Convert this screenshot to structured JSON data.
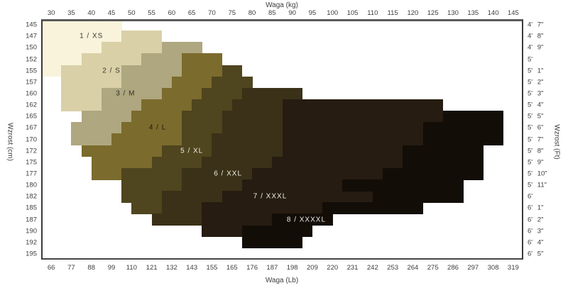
{
  "chart_data": {
    "type": "heatmap",
    "description": "Hosiery size chart: stepped diagonal size regions on a height-vs-weight grid",
    "axes": {
      "top": {
        "title": "Waga  (kg)",
        "ticks": [
          "30",
          "35",
          "40",
          "45",
          "50",
          "55",
          "60",
          "65",
          "70",
          "75",
          "80",
          "85",
          "90",
          "95",
          "100",
          "105",
          "110",
          "115",
          "120",
          "125",
          "130",
          "135",
          "140",
          "145"
        ]
      },
      "bottom": {
        "title": "Waga  (Lb)",
        "ticks": [
          "66",
          "77",
          "88",
          "99",
          "110",
          "121",
          "132",
          "143",
          "155",
          "165",
          "176",
          "187",
          "198",
          "209",
          "220",
          "231",
          "242",
          "253",
          "264",
          "275",
          "286",
          "297",
          "308",
          "319"
        ]
      },
      "left": {
        "title": "Wzrost  (cm)",
        "ticks": [
          "145",
          "147",
          "150",
          "152",
          "155",
          "157",
          "160",
          "162",
          "165",
          "167",
          "170",
          "172",
          "175",
          "177",
          "180",
          "182",
          "185",
          "187",
          "190",
          "192",
          "195"
        ]
      },
      "right": {
        "title": "Wzrost  (Ft)",
        "ticks": [
          "4' 7\"",
          "4' 8\"",
          "4' 9\"",
          "5'",
          "5' 1\"",
          "5' 2\"",
          "5' 3\"",
          "5' 4\"",
          "5' 5\"",
          "5' 6\"",
          "5' 7\"",
          "5' 8\"",
          "5' 9\"",
          "5' 10\"",
          "5' 11\"",
          "6'",
          "6' 1\"",
          "6' 2\"",
          "6' 3\"",
          "6' 4\"",
          "6' 5\""
        ]
      }
    },
    "grid": {
      "cols": 24,
      "rows": 21,
      "kg_at_col_center0": 30,
      "kg_per_col": 5,
      "note": "segment col units: weight boundary kg = 27.5 + 5*col; row index maps to left/cm tick"
    },
    "sizes": [
      {
        "label": "1 / XS",
        "color": "#f8f3da",
        "label_text_color": "#3a372c",
        "label_row": 1,
        "label_col": 2.5,
        "rows": [
          [
            0,
            0,
            4
          ],
          [
            1,
            0,
            4
          ],
          [
            2,
            0,
            3
          ],
          [
            3,
            0,
            2
          ],
          [
            4,
            0,
            1
          ]
        ]
      },
      {
        "label": "2 / S",
        "color": "#d9d0a8",
        "label_text_color": "#3a372c",
        "label_row": 4,
        "label_col": 3.5,
        "rows": [
          [
            1,
            4,
            6
          ],
          [
            2,
            3,
            6
          ],
          [
            3,
            2,
            5
          ],
          [
            4,
            1,
            4
          ],
          [
            5,
            1,
            4
          ],
          [
            6,
            1,
            3
          ],
          [
            7,
            1,
            3
          ]
        ]
      },
      {
        "label": "3 / M",
        "color": "#aea77f",
        "label_text_color": "#33302a",
        "label_row": 6,
        "label_col": 4.2,
        "rows": [
          [
            2,
            6,
            8
          ],
          [
            3,
            5,
            7
          ],
          [
            4,
            4,
            7
          ],
          [
            5,
            4,
            6.5
          ],
          [
            6,
            3,
            6
          ],
          [
            7,
            3,
            5
          ],
          [
            8,
            2,
            4.5
          ],
          [
            9,
            1.5,
            4
          ],
          [
            10,
            1.5,
            3.5
          ]
        ]
      },
      {
        "label": "4 / L",
        "color": "#7b6b2d",
        "label_text_color": "#201b0c",
        "label_row": 9,
        "label_col": 5.8,
        "rows": [
          [
            3,
            7,
            9
          ],
          [
            4,
            7,
            9
          ],
          [
            5,
            6.5,
            8.5
          ],
          [
            6,
            6,
            8
          ],
          [
            7,
            5,
            7.5
          ],
          [
            8,
            4.5,
            7
          ],
          [
            9,
            4,
            7
          ],
          [
            10,
            3.5,
            7
          ],
          [
            11,
            2,
            6
          ],
          [
            12,
            2.5,
            5.5
          ],
          [
            13,
            2.5,
            4
          ]
        ]
      },
      {
        "label": "5 / XL",
        "color": "#4f451e",
        "label_text_color": "#efece1",
        "label_row": 11,
        "label_col": 7.5,
        "rows": [
          [
            4,
            9,
            10
          ],
          [
            5,
            8.5,
            10.5
          ],
          [
            6,
            8,
            10
          ],
          [
            7,
            7.5,
            9.5
          ],
          [
            8,
            7,
            9
          ],
          [
            9,
            7,
            9
          ],
          [
            10,
            7,
            8.5
          ],
          [
            11,
            6,
            8.5
          ],
          [
            12,
            5.5,
            8
          ],
          [
            13,
            4,
            7
          ],
          [
            14,
            4,
            7
          ],
          [
            15,
            4,
            6
          ],
          [
            16,
            4.5,
            6
          ]
        ]
      },
      {
        "label": "6 / XXL",
        "color": "#3a3118",
        "label_text_color": "#efece1",
        "label_row": 13,
        "label_col": 9.3,
        "rows": [
          [
            6,
            10,
            13
          ],
          [
            7,
            9.5,
            12
          ],
          [
            8,
            9,
            12
          ],
          [
            9,
            9,
            12
          ],
          [
            10,
            8.5,
            12
          ],
          [
            11,
            8.5,
            12
          ],
          [
            12,
            8,
            11.5
          ],
          [
            13,
            7,
            10.5
          ],
          [
            14,
            7,
            10
          ],
          [
            15,
            6,
            9
          ],
          [
            16,
            6,
            8
          ],
          [
            17,
            5.5,
            8
          ]
        ]
      },
      {
        "label": "7 / XXXL",
        "color": "#261c11",
        "label_text_color": "#efece1",
        "label_row": 15,
        "label_col": 11.4,
        "rows": [
          [
            7,
            12,
            20
          ],
          [
            8,
            12,
            20
          ],
          [
            9,
            12,
            19
          ],
          [
            10,
            12,
            19
          ],
          [
            11,
            12,
            18
          ],
          [
            12,
            11.5,
            18
          ],
          [
            13,
            10.5,
            17
          ],
          [
            14,
            10,
            15
          ],
          [
            15,
            9,
            16.5
          ],
          [
            16,
            8,
            14
          ],
          [
            17,
            8,
            11.5
          ],
          [
            18,
            8,
            10
          ]
        ]
      },
      {
        "label": "8 / XXXXL",
        "color": "#120d07",
        "label_text_color": "#efece1",
        "label_row": 17,
        "label_col": 13.2,
        "rows": [
          [
            8,
            20,
            23
          ],
          [
            9,
            19,
            23
          ],
          [
            10,
            19,
            23
          ],
          [
            11,
            18,
            22
          ],
          [
            12,
            18,
            22
          ],
          [
            13,
            17,
            22
          ],
          [
            14,
            15,
            21
          ],
          [
            15,
            16.5,
            21
          ],
          [
            16,
            14,
            19
          ],
          [
            17,
            11.5,
            14.5
          ],
          [
            18,
            10,
            13.5
          ],
          [
            19,
            10,
            13
          ]
        ]
      }
    ]
  }
}
